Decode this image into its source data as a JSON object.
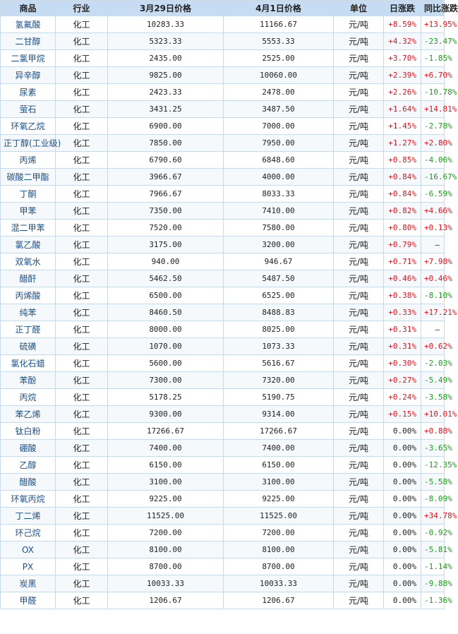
{
  "headers": [
    "商品",
    "行业",
    "3月29日价格",
    "4月1日价格",
    "单位",
    "日涨跌",
    "同比涨跌"
  ],
  "rows": [
    {
      "name": "氢氟酸",
      "industry": "化工",
      "p1": "10283.33",
      "p2": "11166.67",
      "unit": "元/吨",
      "day": "+8.59%",
      "yoy": "+13.95%"
    },
    {
      "name": "二甘醇",
      "industry": "化工",
      "p1": "5323.33",
      "p2": "5553.33",
      "unit": "元/吨",
      "day": "+4.32%",
      "yoy": "-23.47%"
    },
    {
      "name": "二氯甲烷",
      "industry": "化工",
      "p1": "2435.00",
      "p2": "2525.00",
      "unit": "元/吨",
      "day": "+3.70%",
      "yoy": "-1.85%"
    },
    {
      "name": "异辛醇",
      "industry": "化工",
      "p1": "9825.00",
      "p2": "10060.00",
      "unit": "元/吨",
      "day": "+2.39%",
      "yoy": "+6.70%"
    },
    {
      "name": "尿素",
      "industry": "化工",
      "p1": "2423.33",
      "p2": "2478.00",
      "unit": "元/吨",
      "day": "+2.26%",
      "yoy": "-10.78%"
    },
    {
      "name": "萤石",
      "industry": "化工",
      "p1": "3431.25",
      "p2": "3487.50",
      "unit": "元/吨",
      "day": "+1.64%",
      "yoy": "+14.81%"
    },
    {
      "name": "环氧乙烷",
      "industry": "化工",
      "p1": "6900.00",
      "p2": "7000.00",
      "unit": "元/吨",
      "day": "+1.45%",
      "yoy": "-2.78%"
    },
    {
      "name": "正丁醇(工业级)",
      "industry": "化工",
      "p1": "7850.00",
      "p2": "7950.00",
      "unit": "元/吨",
      "day": "+1.27%",
      "yoy": "+2.80%"
    },
    {
      "name": "丙烯",
      "industry": "化工",
      "p1": "6790.60",
      "p2": "6848.60",
      "unit": "元/吨",
      "day": "+0.85%",
      "yoy": "-4.06%"
    },
    {
      "name": "碳酸二甲酯",
      "industry": "化工",
      "p1": "3966.67",
      "p2": "4000.00",
      "unit": "元/吨",
      "day": "+0.84%",
      "yoy": "-16.67%"
    },
    {
      "name": "丁酮",
      "industry": "化工",
      "p1": "7966.67",
      "p2": "8033.33",
      "unit": "元/吨",
      "day": "+0.84%",
      "yoy": "-6.59%"
    },
    {
      "name": "甲苯",
      "industry": "化工",
      "p1": "7350.00",
      "p2": "7410.00",
      "unit": "元/吨",
      "day": "+0.82%",
      "yoy": "+4.66%"
    },
    {
      "name": "混二甲苯",
      "industry": "化工",
      "p1": "7520.00",
      "p2": "7580.00",
      "unit": "元/吨",
      "day": "+0.80%",
      "yoy": "+0.13%"
    },
    {
      "name": "氯乙酸",
      "industry": "化工",
      "p1": "3175.00",
      "p2": "3200.00",
      "unit": "元/吨",
      "day": "+0.79%",
      "yoy": "—"
    },
    {
      "name": "双氧水",
      "industry": "化工",
      "p1": "940.00",
      "p2": "946.67",
      "unit": "元/吨",
      "day": "+0.71%",
      "yoy": "+7.98%"
    },
    {
      "name": "醋酐",
      "industry": "化工",
      "p1": "5462.50",
      "p2": "5487.50",
      "unit": "元/吨",
      "day": "+0.46%",
      "yoy": "+0.46%"
    },
    {
      "name": "丙烯酸",
      "industry": "化工",
      "p1": "6500.00",
      "p2": "6525.00",
      "unit": "元/吨",
      "day": "+0.38%",
      "yoy": "-8.10%"
    },
    {
      "name": "纯苯",
      "industry": "化工",
      "p1": "8460.50",
      "p2": "8488.83",
      "unit": "元/吨",
      "day": "+0.33%",
      "yoy": "+17.21%"
    },
    {
      "name": "正丁醛",
      "industry": "化工",
      "p1": "8000.00",
      "p2": "8025.00",
      "unit": "元/吨",
      "day": "+0.31%",
      "yoy": "—"
    },
    {
      "name": "硫磺",
      "industry": "化工",
      "p1": "1070.00",
      "p2": "1073.33",
      "unit": "元/吨",
      "day": "+0.31%",
      "yoy": "+0.62%"
    },
    {
      "name": "氯化石蜡",
      "industry": "化工",
      "p1": "5600.00",
      "p2": "5616.67",
      "unit": "元/吨",
      "day": "+0.30%",
      "yoy": "-2.03%"
    },
    {
      "name": "苯酚",
      "industry": "化工",
      "p1": "7300.00",
      "p2": "7320.00",
      "unit": "元/吨",
      "day": "+0.27%",
      "yoy": "-5.49%"
    },
    {
      "name": "丙烷",
      "industry": "化工",
      "p1": "5178.25",
      "p2": "5190.75",
      "unit": "元/吨",
      "day": "+0.24%",
      "yoy": "-3.58%"
    },
    {
      "name": "苯乙烯",
      "industry": "化工",
      "p1": "9300.00",
      "p2": "9314.00",
      "unit": "元/吨",
      "day": "+0.15%",
      "yoy": "+10.01%"
    },
    {
      "name": "钛白粉",
      "industry": "化工",
      "p1": "17266.67",
      "p2": "17266.67",
      "unit": "元/吨",
      "day": "0.00%",
      "yoy": "+0.88%"
    },
    {
      "name": "硼酸",
      "industry": "化工",
      "p1": "7400.00",
      "p2": "7400.00",
      "unit": "元/吨",
      "day": "0.00%",
      "yoy": "-3.65%"
    },
    {
      "name": "乙醇",
      "industry": "化工",
      "p1": "6150.00",
      "p2": "6150.00",
      "unit": "元/吨",
      "day": "0.00%",
      "yoy": "-12.35%"
    },
    {
      "name": "醋酸",
      "industry": "化工",
      "p1": "3100.00",
      "p2": "3100.00",
      "unit": "元/吨",
      "day": "0.00%",
      "yoy": "-5.58%"
    },
    {
      "name": "环氧丙烷",
      "industry": "化工",
      "p1": "9225.00",
      "p2": "9225.00",
      "unit": "元/吨",
      "day": "0.00%",
      "yoy": "-8.09%"
    },
    {
      "name": "丁二烯",
      "industry": "化工",
      "p1": "11525.00",
      "p2": "11525.00",
      "unit": "元/吨",
      "day": "0.00%",
      "yoy": "+34.78%"
    },
    {
      "name": "环己烷",
      "industry": "化工",
      "p1": "7200.00",
      "p2": "7200.00",
      "unit": "元/吨",
      "day": "0.00%",
      "yoy": "-0.92%"
    },
    {
      "name": "OX",
      "industry": "化工",
      "p1": "8100.00",
      "p2": "8100.00",
      "unit": "元/吨",
      "day": "0.00%",
      "yoy": "-5.81%"
    },
    {
      "name": "PX",
      "industry": "化工",
      "p1": "8700.00",
      "p2": "8700.00",
      "unit": "元/吨",
      "day": "0.00%",
      "yoy": "-1.14%"
    },
    {
      "name": "炭黑",
      "industry": "化工",
      "p1": "10033.33",
      "p2": "10033.33",
      "unit": "元/吨",
      "day": "0.00%",
      "yoy": "-9.88%"
    },
    {
      "name": "甲醛",
      "industry": "化工",
      "p1": "1206.67",
      "p2": "1206.67",
      "unit": "元/吨",
      "day": "0.00%",
      "yoy": "-1.36%"
    }
  ]
}
